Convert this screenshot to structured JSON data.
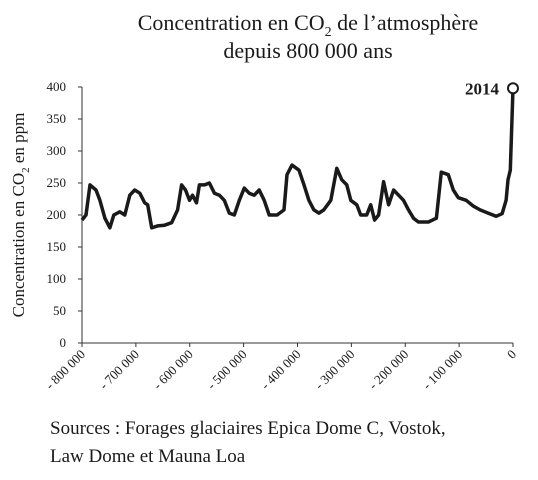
{
  "chart_data": {
    "type": "line",
    "title": [
      "Concentration en CO",
      "2",
      " de l’atmosphère",
      "depuis 800 000 ans"
    ],
    "y_label": [
      "Concentration en CO",
      "2",
      " en ppm"
    ],
    "annotation": "2014",
    "source": [
      "Sources : Forages glaciaires Epica Dome C, Vostok,",
      "Law Dome et Mauna Loa"
    ],
    "color": "#1a1a1a",
    "x": [
      -800000,
      -792600,
      -785200,
      -774100,
      -766700,
      -757500,
      -748300,
      -740900,
      -729800,
      -720600,
      -711300,
      -702100,
      -692800,
      -683600,
      -678000,
      -670700,
      -659600,
      -646600,
      -633700,
      -622600,
      -615200,
      -607800,
      -600400,
      -594900,
      -587500,
      -582000,
      -572700,
      -563500,
      -554200,
      -545000,
      -535800,
      -526500,
      -517300,
      -508000,
      -498800,
      -489600,
      -480300,
      -471100,
      -461900,
      -452600,
      -437900,
      -425000,
      -419400,
      -410200,
      -397200,
      -388000,
      -378800,
      -369500,
      -360300,
      -351100,
      -338100,
      -327000,
      -317800,
      -308500,
      -301100,
      -290000,
      -282700,
      -271600,
      -264200,
      -256800,
      -249400,
      -240100,
      -230900,
      -221700,
      -212400,
      -203200,
      -194000,
      -184700,
      -175500,
      -157000,
      -142200,
      -133000,
      -120100,
      -110800,
      -101600,
      -86800,
      -73900,
      -61000,
      -46200,
      -31400,
      -20300,
      -12900,
      -9200,
      -5000,
      0
    ],
    "values": [
      192,
      200,
      247,
      239,
      223,
      195,
      180,
      200,
      205,
      200,
      231,
      239,
      234,
      219,
      216,
      180,
      183,
      184,
      188,
      208,
      247,
      239,
      223,
      231,
      219,
      247,
      247,
      250,
      234,
      231,
      223,
      203,
      200,
      223,
      242,
      234,
      231,
      239,
      223,
      200,
      200,
      208,
      263,
      278,
      270,
      247,
      223,
      208,
      203,
      208,
      223,
      273,
      255,
      247,
      223,
      216,
      200,
      200,
      216,
      192,
      200,
      252,
      216,
      239,
      231,
      223,
      208,
      195,
      189,
      189,
      195,
      267,
      263,
      239,
      227,
      223,
      214,
      208,
      203,
      198,
      202,
      223,
      255,
      270,
      398
    ],
    "xlim": [
      -800000,
      0
    ],
    "ylim": [
      0,
      400
    ],
    "xticks": [
      {
        "value": -800000,
        "label": "- 800 000"
      },
      {
        "value": -700000,
        "label": "- 700 000"
      },
      {
        "value": -600000,
        "label": "- 600 000"
      },
      {
        "value": -500000,
        "label": "- 500 000"
      },
      {
        "value": -400000,
        "label": "- 400 000"
      },
      {
        "value": -300000,
        "label": "- 300 000"
      },
      {
        "value": -200000,
        "label": "- 200 000"
      },
      {
        "value": -100000,
        "label": "- 100 000"
      },
      0
    ],
    "yticks": [
      0,
      50,
      100,
      150,
      200,
      250,
      300,
      350,
      400
    ]
  }
}
